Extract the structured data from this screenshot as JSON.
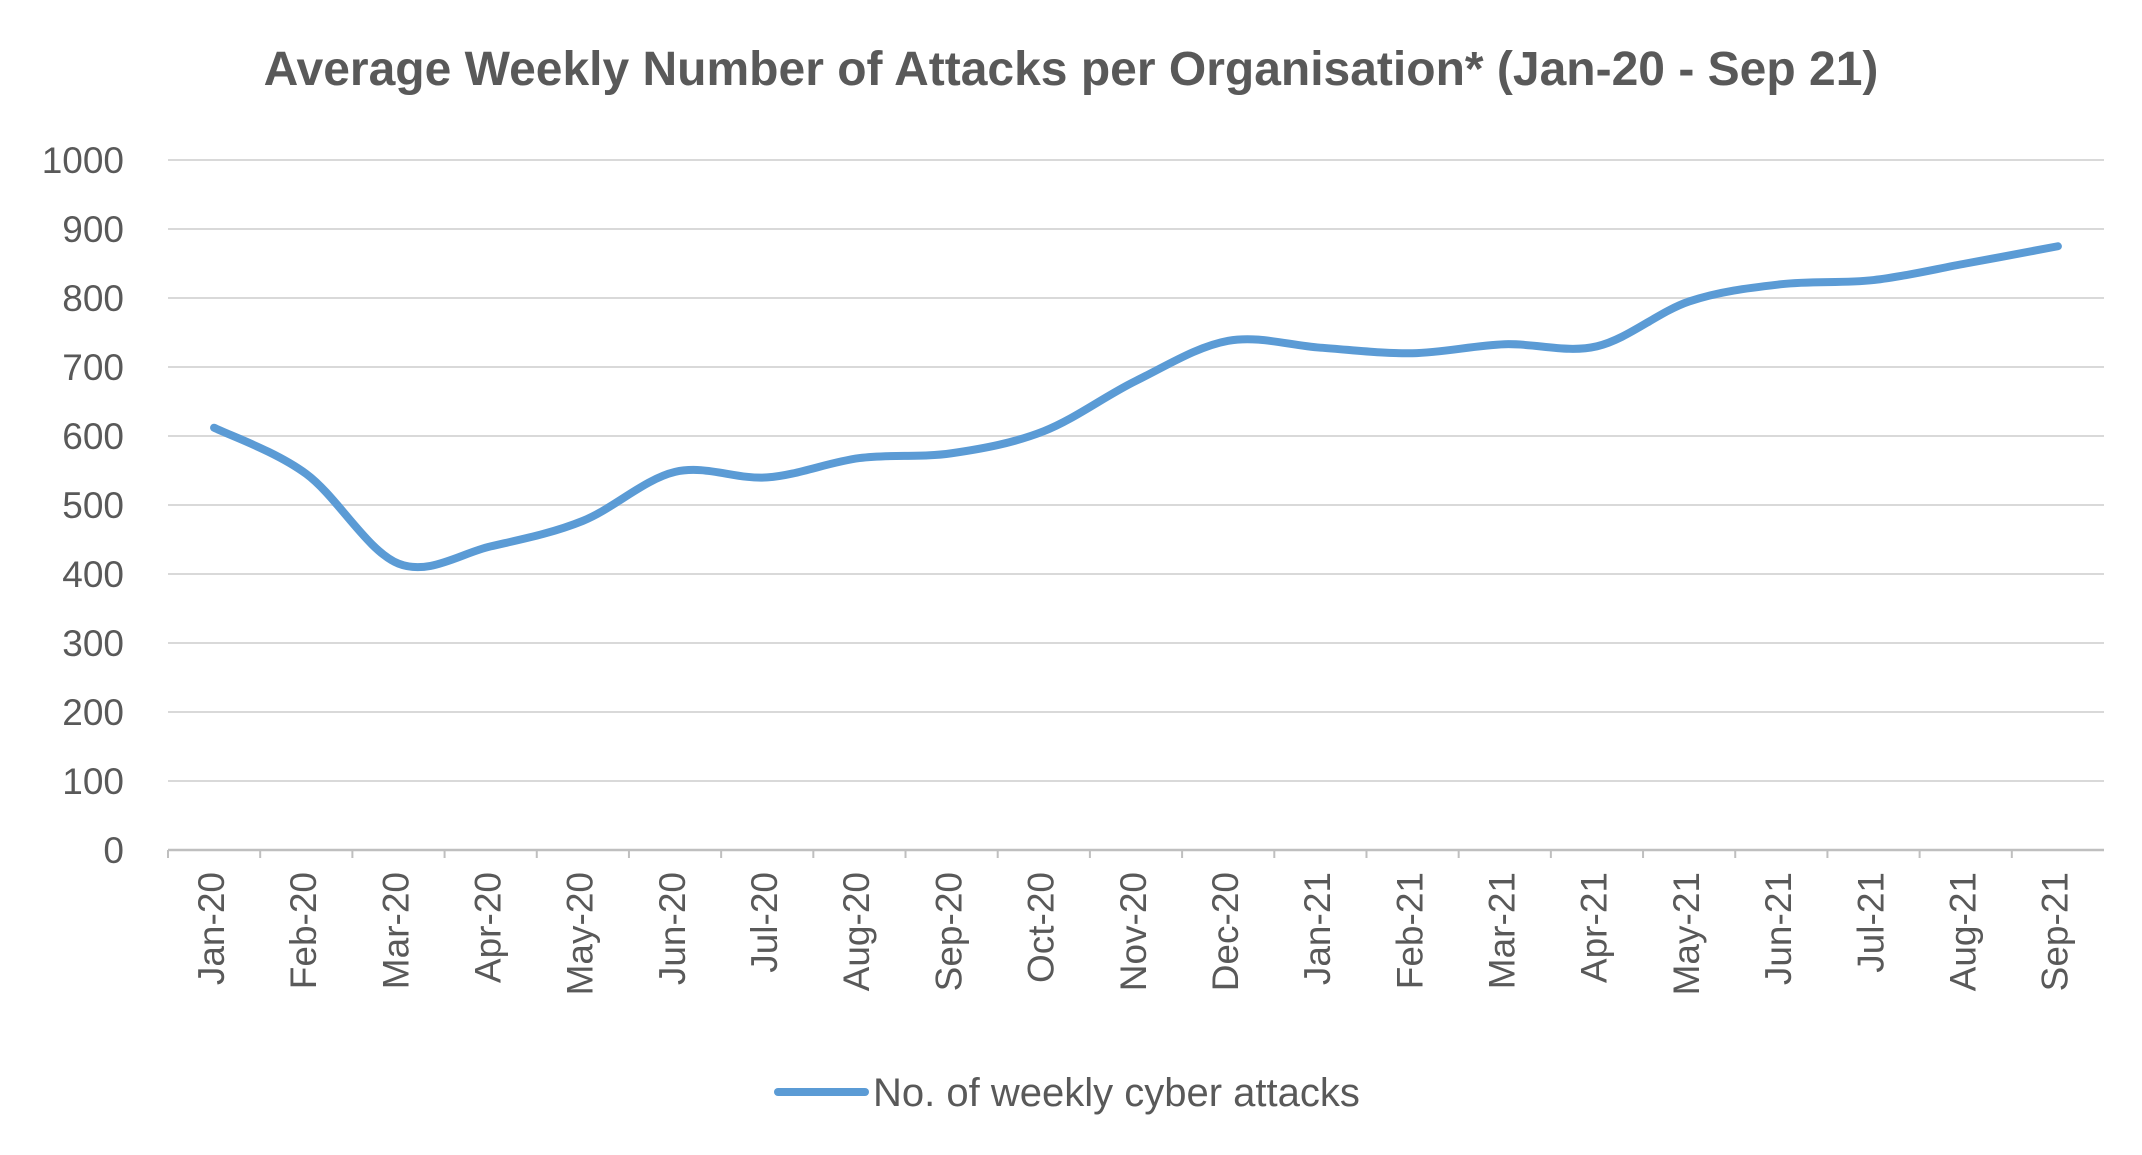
{
  "chart_data": {
    "type": "line",
    "title": "Average Weekly Number of Attacks per Organisation* (Jan-20 - Sep 21)",
    "xlabel": "",
    "ylabel": "",
    "categories": [
      "Jan-20",
      "Feb-20",
      "Mar-20",
      "Apr-20",
      "May-20",
      "Jun-20",
      "Jul-20",
      "Aug-20",
      "Sep-20",
      "Oct-20",
      "Nov-20",
      "Dec-20",
      "Jan-21",
      "Feb-21",
      "Mar-21",
      "Apr-21",
      "May-21",
      "Jun-21",
      "Jul-21",
      "Aug-21",
      "Sep-21"
    ],
    "series": [
      {
        "name": "No. of weekly cyber attacks",
        "color": "#5b9bd5",
        "values": [
          612,
          545,
          415,
          440,
          477,
          548,
          540,
          568,
          575,
          607,
          680,
          738,
          728,
          720,
          733,
          730,
          795,
          820,
          826,
          850,
          875
        ]
      }
    ],
    "ylim": [
      0,
      1000
    ],
    "yticks": [
      "0",
      "100",
      "200",
      "300",
      "400",
      "500",
      "600",
      "700",
      "800",
      "900",
      "1000"
    ],
    "grid": true,
    "legend_position": "bottom"
  }
}
